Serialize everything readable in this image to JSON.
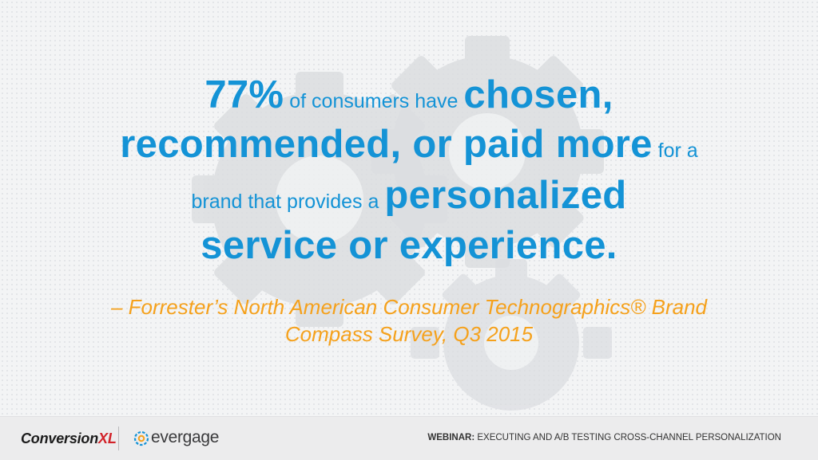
{
  "quote": {
    "line1": {
      "stat": "77%",
      "text1": " of consumers have ",
      "emph": "chosen,"
    },
    "line2": {
      "emph": "recommended, or paid more",
      "text1": " for a"
    },
    "line3": {
      "text1": "brand that provides a ",
      "emph": "personalized"
    },
    "line4": {
      "emph": "service or experience."
    }
  },
  "citation": {
    "line1": "– Forrester’s North American Consumer Technographics® Brand",
    "line2": "Compass Survey, Q3 2015"
  },
  "footer": {
    "logo_cxl_main": "Conversion",
    "logo_cxl_accent": "XL",
    "logo_evergage": "evergage",
    "webinar_label": "WEBINAR:",
    "webinar_title": " EXECUTING AND A/B TESTING CROSS-CHANNEL PERSONALIZATION"
  },
  "colors": {
    "primary_blue": "#1493d6",
    "citation_orange": "#f5a11c",
    "gear_gray": "#dcdee1"
  }
}
